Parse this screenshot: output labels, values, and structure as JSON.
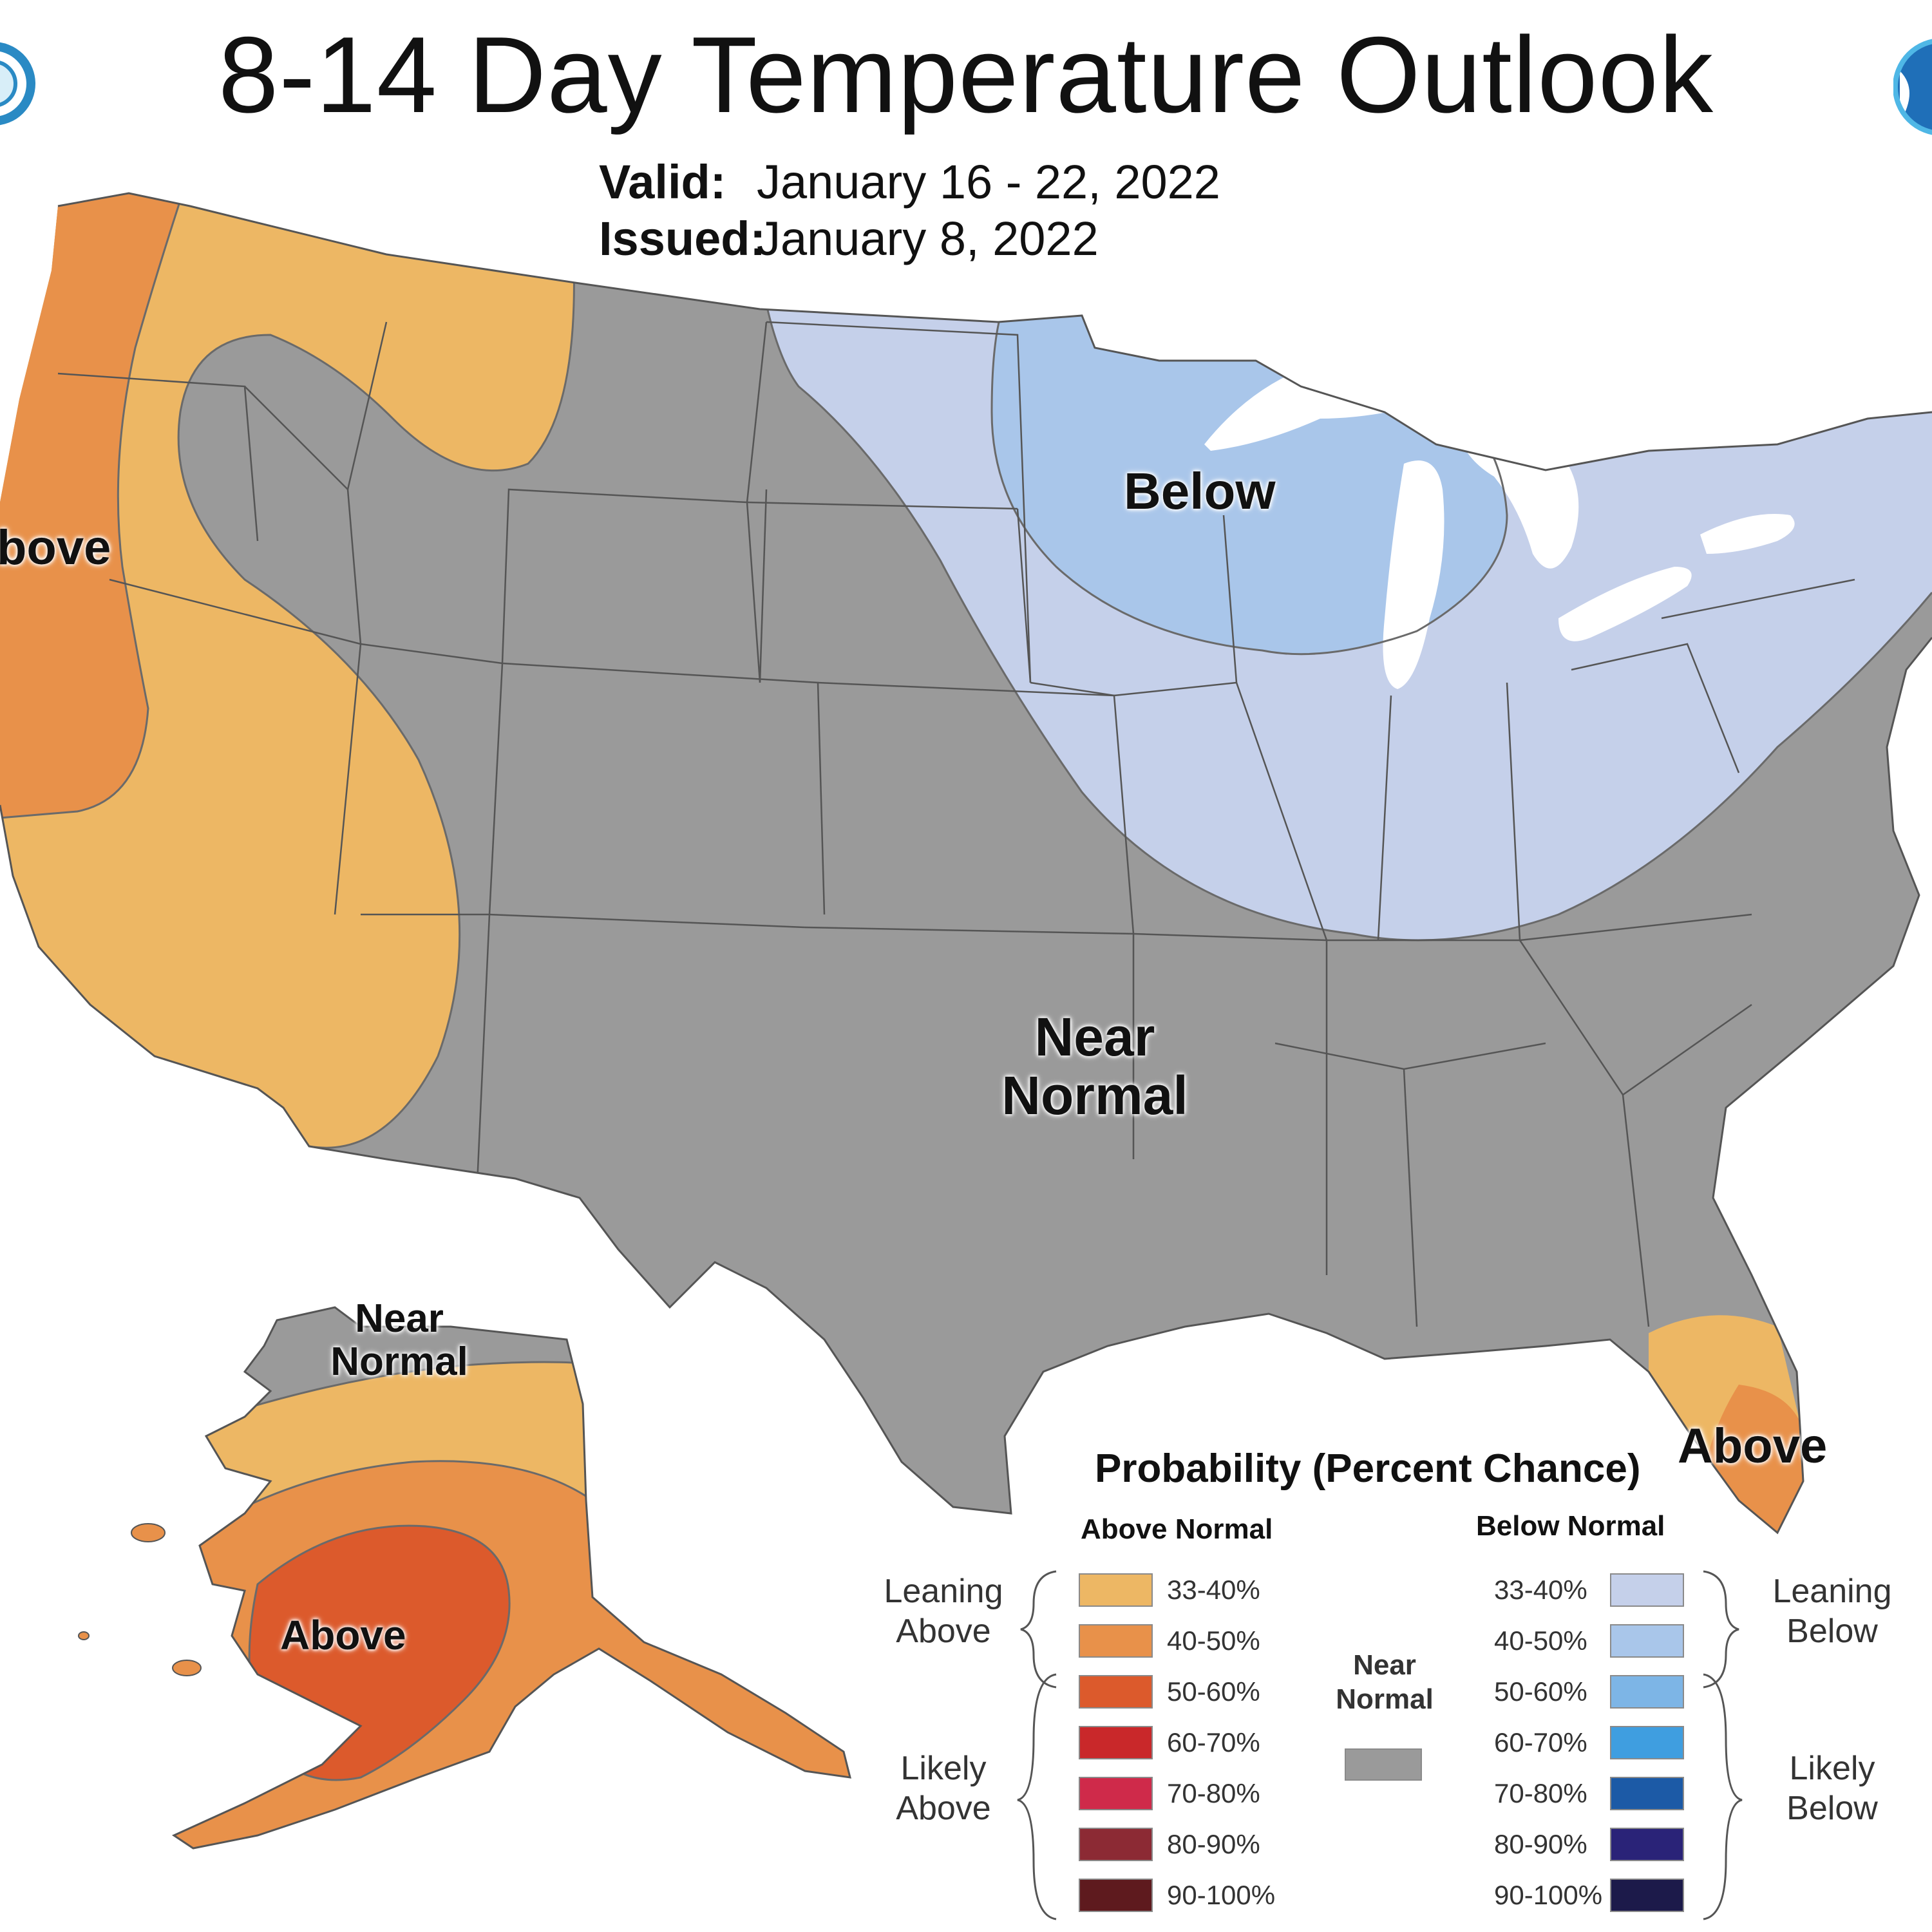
{
  "header": {
    "title": "8-14 Day Temperature Outlook",
    "valid_label": "Valid:",
    "valid_value": "January 16 - 22, 2022",
    "issued_label": "Issued:",
    "issued_value": "January 8, 2022"
  },
  "map": {
    "label_west_above": "bove",
    "label_below": "Below",
    "label_near_normal_1": "Near",
    "label_near_normal_2": "Normal",
    "label_florida_above": "Above",
    "label_alaska_near_1": "Near",
    "label_alaska_near_2": "Normal",
    "label_alaska_above": "Above"
  },
  "legend": {
    "title": "Probability (Percent Chance)",
    "above_header": "Above Normal",
    "below_header": "Below Normal",
    "leaning_above": [
      "Leaning",
      "Above"
    ],
    "likely_above": [
      "Likely",
      "Above"
    ],
    "leaning_below": [
      "Leaning",
      "Below"
    ],
    "likely_below": [
      "Likely",
      "Below"
    ],
    "near_normal": [
      "Near",
      "Normal"
    ],
    "above_bins": [
      {
        "range": "33-40%",
        "color": "#edb764"
      },
      {
        "range": "40-50%",
        "color": "#e8914a"
      },
      {
        "range": "50-60%",
        "color": "#dc5a2c"
      },
      {
        "range": "60-70%",
        "color": "#c9282a"
      },
      {
        "range": "70-80%",
        "color": "#cf2a4a"
      },
      {
        "range": "80-90%",
        "color": "#8c2a34"
      },
      {
        "range": "90-100%",
        "color": "#5e1a1e"
      }
    ],
    "below_bins": [
      {
        "range": "33-40%",
        "color": "#c5d0ea"
      },
      {
        "range": "40-50%",
        "color": "#a9c6ea"
      },
      {
        "range": "50-60%",
        "color": "#7db5e6"
      },
      {
        "range": "60-70%",
        "color": "#3f9ee0"
      },
      {
        "range": "70-80%",
        "color": "#1c5aa6"
      },
      {
        "range": "80-90%",
        "color": "#2a2378"
      },
      {
        "range": "90-100%",
        "color": "#1c1a4a"
      }
    ],
    "near_normal_color": "#9a9a9a"
  },
  "colors": {
    "near_normal": "#9a9a9a",
    "above_33_40": "#edb764",
    "above_40_50": "#e8914a",
    "above_50_60": "#dc5a2c",
    "below_33_40": "#c5d0ea",
    "below_40_50": "#a9c6ea",
    "lakes": "#ffffff",
    "borders": "#5a5a5a"
  },
  "icons": [
    "cpc-logo-icon",
    "noaa-logo-icon"
  ]
}
